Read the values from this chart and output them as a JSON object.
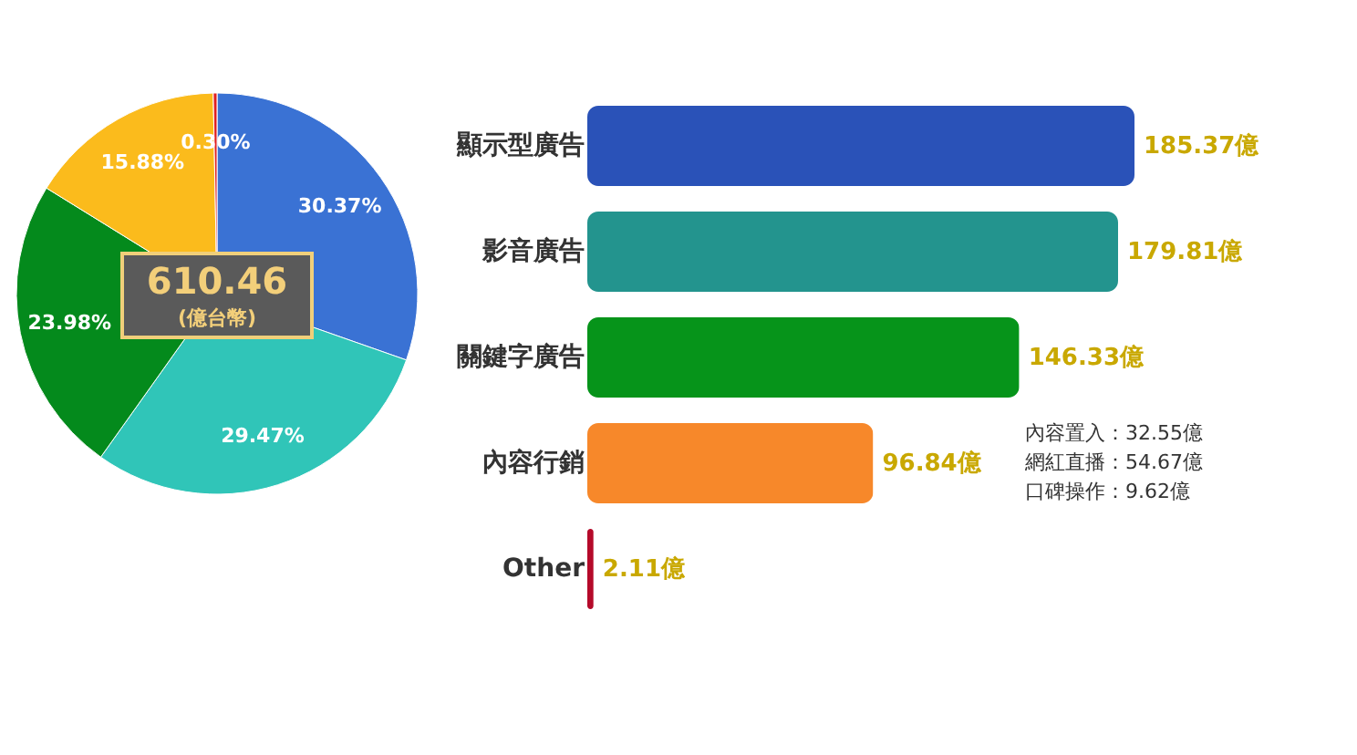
{
  "chart_data": [
    {
      "type": "pie",
      "categories": [
        null,
        null,
        null,
        null,
        null
      ],
      "values": [
        30.37,
        29.47,
        23.98,
        15.88,
        0.3
      ],
      "colors": [
        "#3a72d4",
        "#30c5b8",
        "#048a1c",
        "#fbbb1c",
        "#e02020"
      ],
      "value_labels": [
        "30.37%",
        "29.47%",
        "23.98%",
        "15.88%",
        "0.30%"
      ],
      "annotations": [
        "610.46",
        "(億台幣)"
      ]
    },
    {
      "type": "bar",
      "orientation": "horizontal",
      "categories": [
        "顯示型廣告",
        "影音廣告",
        "關鍵字廣告",
        "內容行銷",
        "Other"
      ],
      "values": [
        185.37,
        179.81,
        146.33,
        96.84,
        2.11
      ],
      "colors": [
        "#2a52b8",
        "#23948e",
        "#06941a",
        "#f7882a",
        "#b50a2a"
      ],
      "value_labels": [
        "185.37億",
        "179.81億",
        "146.33億",
        "96.84億",
        "2.11億"
      ],
      "annotations": [
        "內容置入：32.55億",
        "網紅直播：54.67億",
        "口碑操作：9.62億"
      ]
    }
  ]
}
